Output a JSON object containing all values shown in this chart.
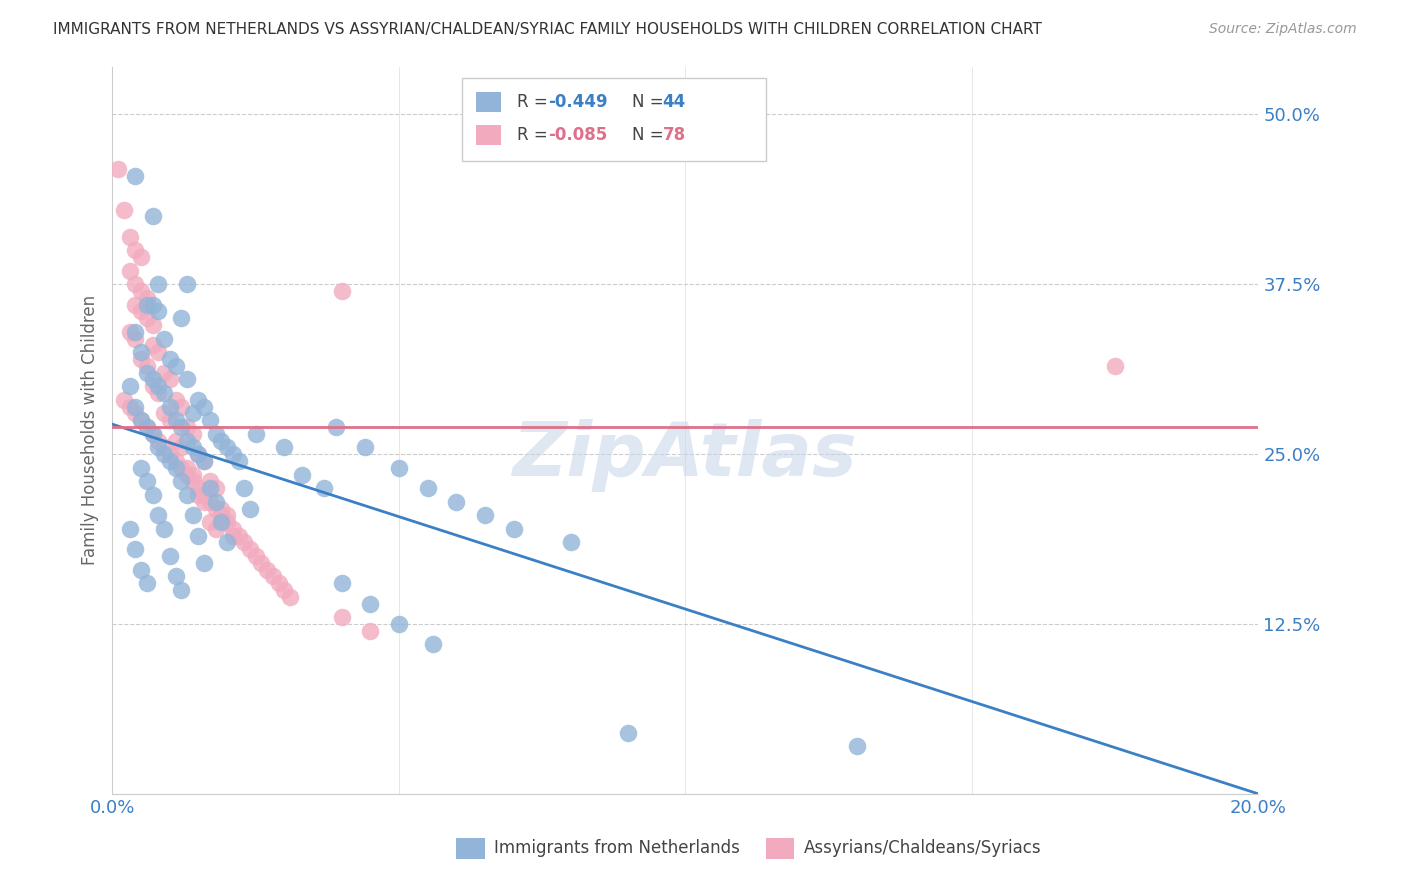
{
  "title": "IMMIGRANTS FROM NETHERLANDS VS ASSYRIAN/CHALDEAN/SYRIAC FAMILY HOUSEHOLDS WITH CHILDREN CORRELATION CHART",
  "source": "Source: ZipAtlas.com",
  "ylabel": "Family Households with Children",
  "ytick_labels": [
    "50.0%",
    "37.5%",
    "25.0%",
    "12.5%"
  ],
  "ytick_values": [
    0.5,
    0.375,
    0.25,
    0.125
  ],
  "xlim": [
    0.0,
    0.2
  ],
  "ylim": [
    0.0,
    0.535
  ],
  "watermark": "ZipAtlas",
  "blue_color": "#92b4d8",
  "blue_line_color": "#3b7fc4",
  "pink_color": "#f2abbe",
  "pink_line_color": "#e0708a",
  "blue_line_x0": 0.0,
  "blue_line_y0": 0.272,
  "blue_line_x1": 0.2,
  "blue_line_y1": 0.0,
  "pink_line_x0": 0.0,
  "pink_line_y0": 0.27,
  "pink_line_x1": 0.2,
  "pink_line_y1": 0.27,
  "blue_scatter": [
    [
      0.004,
      0.455
    ],
    [
      0.007,
      0.425
    ],
    [
      0.008,
      0.375
    ],
    [
      0.013,
      0.375
    ],
    [
      0.006,
      0.36
    ],
    [
      0.007,
      0.36
    ],
    [
      0.008,
      0.355
    ],
    [
      0.012,
      0.35
    ],
    [
      0.004,
      0.34
    ],
    [
      0.009,
      0.335
    ],
    [
      0.005,
      0.325
    ],
    [
      0.01,
      0.32
    ],
    [
      0.011,
      0.315
    ],
    [
      0.006,
      0.31
    ],
    [
      0.007,
      0.305
    ],
    [
      0.013,
      0.305
    ],
    [
      0.003,
      0.3
    ],
    [
      0.008,
      0.3
    ],
    [
      0.009,
      0.295
    ],
    [
      0.015,
      0.29
    ],
    [
      0.004,
      0.285
    ],
    [
      0.01,
      0.285
    ],
    [
      0.016,
      0.285
    ],
    [
      0.014,
      0.28
    ],
    [
      0.005,
      0.275
    ],
    [
      0.011,
      0.275
    ],
    [
      0.017,
      0.275
    ],
    [
      0.006,
      0.27
    ],
    [
      0.012,
      0.27
    ],
    [
      0.007,
      0.265
    ],
    [
      0.018,
      0.265
    ],
    [
      0.013,
      0.26
    ],
    [
      0.019,
      0.26
    ],
    [
      0.008,
      0.255
    ],
    [
      0.014,
      0.255
    ],
    [
      0.02,
      0.255
    ],
    [
      0.009,
      0.25
    ],
    [
      0.015,
      0.25
    ],
    [
      0.021,
      0.25
    ],
    [
      0.01,
      0.245
    ],
    [
      0.016,
      0.245
    ],
    [
      0.022,
      0.245
    ],
    [
      0.005,
      0.24
    ],
    [
      0.011,
      0.24
    ],
    [
      0.006,
      0.23
    ],
    [
      0.012,
      0.23
    ],
    [
      0.017,
      0.225
    ],
    [
      0.023,
      0.225
    ],
    [
      0.007,
      0.22
    ],
    [
      0.013,
      0.22
    ],
    [
      0.018,
      0.215
    ],
    [
      0.024,
      0.21
    ],
    [
      0.008,
      0.205
    ],
    [
      0.014,
      0.205
    ],
    [
      0.019,
      0.2
    ],
    [
      0.003,
      0.195
    ],
    [
      0.009,
      0.195
    ],
    [
      0.015,
      0.19
    ],
    [
      0.02,
      0.185
    ],
    [
      0.004,
      0.18
    ],
    [
      0.01,
      0.175
    ],
    [
      0.016,
      0.17
    ],
    [
      0.005,
      0.165
    ],
    [
      0.011,
      0.16
    ],
    [
      0.006,
      0.155
    ],
    [
      0.012,
      0.15
    ],
    [
      0.039,
      0.27
    ],
    [
      0.044,
      0.255
    ],
    [
      0.05,
      0.24
    ],
    [
      0.055,
      0.225
    ],
    [
      0.06,
      0.215
    ],
    [
      0.065,
      0.205
    ],
    [
      0.07,
      0.195
    ],
    [
      0.08,
      0.185
    ],
    [
      0.025,
      0.265
    ],
    [
      0.03,
      0.255
    ],
    [
      0.033,
      0.235
    ],
    [
      0.037,
      0.225
    ],
    [
      0.04,
      0.155
    ],
    [
      0.045,
      0.14
    ],
    [
      0.05,
      0.125
    ],
    [
      0.056,
      0.11
    ],
    [
      0.09,
      0.045
    ],
    [
      0.13,
      0.035
    ]
  ],
  "pink_scatter": [
    [
      0.001,
      0.46
    ],
    [
      0.002,
      0.43
    ],
    [
      0.003,
      0.41
    ],
    [
      0.004,
      0.4
    ],
    [
      0.005,
      0.395
    ],
    [
      0.003,
      0.385
    ],
    [
      0.004,
      0.375
    ],
    [
      0.005,
      0.37
    ],
    [
      0.006,
      0.365
    ],
    [
      0.004,
      0.36
    ],
    [
      0.005,
      0.355
    ],
    [
      0.006,
      0.35
    ],
    [
      0.007,
      0.345
    ],
    [
      0.003,
      0.34
    ],
    [
      0.004,
      0.335
    ],
    [
      0.007,
      0.33
    ],
    [
      0.008,
      0.325
    ],
    [
      0.005,
      0.32
    ],
    [
      0.006,
      0.315
    ],
    [
      0.009,
      0.31
    ],
    [
      0.01,
      0.305
    ],
    [
      0.007,
      0.3
    ],
    [
      0.008,
      0.295
    ],
    [
      0.011,
      0.29
    ],
    [
      0.012,
      0.285
    ],
    [
      0.009,
      0.28
    ],
    [
      0.01,
      0.275
    ],
    [
      0.013,
      0.27
    ],
    [
      0.014,
      0.265
    ],
    [
      0.011,
      0.26
    ],
    [
      0.012,
      0.255
    ],
    [
      0.015,
      0.25
    ],
    [
      0.016,
      0.245
    ],
    [
      0.013,
      0.24
    ],
    [
      0.014,
      0.235
    ],
    [
      0.017,
      0.23
    ],
    [
      0.018,
      0.225
    ],
    [
      0.015,
      0.22
    ],
    [
      0.016,
      0.215
    ],
    [
      0.019,
      0.21
    ],
    [
      0.02,
      0.205
    ],
    [
      0.017,
      0.2
    ],
    [
      0.018,
      0.195
    ],
    [
      0.021,
      0.19
    ],
    [
      0.002,
      0.29
    ],
    [
      0.003,
      0.285
    ],
    [
      0.004,
      0.28
    ],
    [
      0.005,
      0.275
    ],
    [
      0.006,
      0.27
    ],
    [
      0.007,
      0.265
    ],
    [
      0.008,
      0.26
    ],
    [
      0.009,
      0.255
    ],
    [
      0.01,
      0.25
    ],
    [
      0.011,
      0.245
    ],
    [
      0.012,
      0.24
    ],
    [
      0.013,
      0.235
    ],
    [
      0.014,
      0.23
    ],
    [
      0.015,
      0.225
    ],
    [
      0.016,
      0.22
    ],
    [
      0.017,
      0.215
    ],
    [
      0.018,
      0.21
    ],
    [
      0.019,
      0.205
    ],
    [
      0.02,
      0.2
    ],
    [
      0.021,
      0.195
    ],
    [
      0.022,
      0.19
    ],
    [
      0.023,
      0.185
    ],
    [
      0.024,
      0.18
    ],
    [
      0.025,
      0.175
    ],
    [
      0.026,
      0.17
    ],
    [
      0.027,
      0.165
    ],
    [
      0.028,
      0.16
    ],
    [
      0.029,
      0.155
    ],
    [
      0.03,
      0.15
    ],
    [
      0.031,
      0.145
    ],
    [
      0.04,
      0.37
    ],
    [
      0.175,
      0.315
    ],
    [
      0.04,
      0.13
    ],
    [
      0.045,
      0.12
    ]
  ]
}
